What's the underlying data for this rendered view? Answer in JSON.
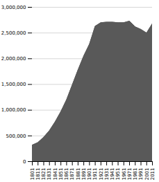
{
  "chart_data": {
    "type": "area",
    "x": [
      1801,
      1811,
      1821,
      1831,
      1841,
      1851,
      1861,
      1871,
      1881,
      1891,
      1901,
      1911,
      1921,
      1931,
      1941,
      1951,
      1961,
      1971,
      1981,
      1991,
      2001,
      2011
    ],
    "values": [
      320000,
      370000,
      470000,
      600000,
      770000,
      970000,
      1200000,
      1490000,
      1780000,
      2050000,
      2280000,
      2630000,
      2700000,
      2710000,
      2710000,
      2700000,
      2700000,
      2730000,
      2620000,
      2570000,
      2500000,
      2680000
    ],
    "color": "#595959",
    "xlim": [
      1801,
      2011
    ],
    "xticks": [
      1801,
      1811,
      1821,
      1831,
      1841,
      1851,
      1861,
      1871,
      1881,
      1891,
      1901,
      1911,
      1921,
      1931,
      1941,
      1951,
      1961,
      1971,
      1981,
      1991,
      2001,
      2011
    ],
    "ylim": [
      0,
      3000000
    ],
    "yticks": [
      0,
      {
        "value": 500000,
        "label": "500,000"
      },
      {
        "value": 1000000,
        "label": "1,000,000"
      },
      {
        "value": 1500000,
        "label": "1,500,000"
      },
      {
        "value": 2000000,
        "label": "2,000,000"
      },
      {
        "value": 2500000,
        "label": "2,500,000"
      },
      {
        "value": 3000000,
        "label": "3,000,000"
      }
    ],
    "grid": true
  }
}
